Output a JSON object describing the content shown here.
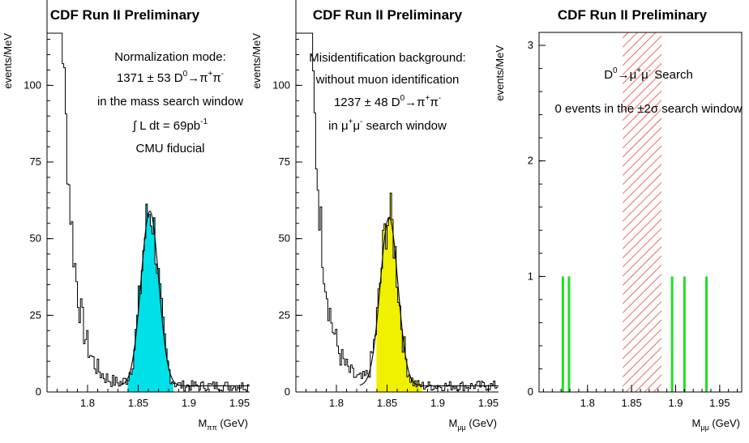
{
  "chart_data": [
    {
      "type": "histogram",
      "title": "CDF Run II Preliminary",
      "xlabel": "M",
      "xlabel_sub": "ππ",
      "xlabel_unit": "(GeV)",
      "ylabel": "events/MeV",
      "xlim": [
        1.76,
        1.96
      ],
      "ylim": [
        0,
        117
      ],
      "xticks": [
        1.8,
        1.85,
        1.9,
        1.95
      ],
      "xtick_labels": [
        "1.8",
        "1.85",
        "1.9",
        "1.95"
      ],
      "yticks": [
        0,
        25,
        50,
        75,
        100
      ],
      "ytick_labels": [
        "0",
        "25",
        "50",
        "75",
        "100"
      ],
      "fill_color": "#00e0e8",
      "fill_range": [
        1.84,
        1.885
      ],
      "fit": {
        "shape": "gaussian",
        "mean": 1.8615,
        "sigma": 0.0087,
        "amplitude": 57,
        "baseline": 2
      },
      "background": {
        "shape": "exponential",
        "x0": 1.775,
        "amplitude": 118,
        "decay": 0.0115
      },
      "annotation_lines": [
        {
          "text": "Normalization mode:"
        },
        {
          "text": "1371 ± 53  D",
          "sup": "0",
          "tail": "→π",
          "tail_sup": "+",
          "tail2": "π",
          "tail2_sup": "-"
        },
        {
          "text": "in the mass search window"
        },
        {
          "text": "∫ L dt = 69pb",
          "sup": "-1"
        },
        {
          "text": "CMU fiducial"
        }
      ]
    },
    {
      "type": "histogram",
      "title": "CDF Run II Preliminary",
      "xlabel": "M",
      "xlabel_sub": "μμ",
      "xlabel_unit": "(GeV)",
      "ylabel": "events/MeV",
      "xlim": [
        1.76,
        1.96
      ],
      "ylim": [
        0,
        117
      ],
      "xticks": [
        1.8,
        1.85,
        1.9,
        1.95
      ],
      "xtick_labels": [
        "1.8",
        "1.85",
        "1.9",
        "1.95"
      ],
      "yticks": [
        0,
        25,
        50,
        75,
        100
      ],
      "ytick_labels": [
        "0",
        "25",
        "50",
        "75",
        "100"
      ],
      "fill_color": "#f0f000",
      "fill_range": [
        1.84,
        1.885
      ],
      "fit": {
        "shape": "gaussian",
        "mean": 1.852,
        "sigma": 0.0087,
        "amplitude": 55,
        "baseline": 2
      },
      "background": {
        "shape": "exponential",
        "x0": 1.775,
        "amplitude": 118,
        "decay": 0.0118
      },
      "annotation_lines": [
        {
          "text": "Misidentification background:"
        },
        {
          "text": "without muon identification"
        },
        {
          "text": "1237 ± 48 D",
          "sup": "0",
          "tail": "→π",
          "tail_sup": "+",
          "tail2": "π",
          "tail2_sup": "-"
        },
        {
          "text": "in μ",
          "sup": "+",
          "tail": "μ",
          "tail_sup": "-",
          "tail2": " search window",
          "tail2_sup": ""
        }
      ]
    },
    {
      "type": "histogram",
      "title": "CDF Run II Preliminary",
      "xlabel": "M",
      "xlabel_sub": "μμ",
      "xlabel_unit": "(GeV)",
      "ylabel": "events/MeV",
      "xlim": [
        1.745,
        1.975
      ],
      "ylim": [
        0,
        3
      ],
      "xticks": [
        1.8,
        1.85,
        1.9,
        1.95
      ],
      "xtick_labels": [
        "1.8",
        "1.85",
        "1.9",
        "1.95"
      ],
      "yticks": [
        0,
        1,
        2,
        3
      ],
      "ytick_labels": [
        "0",
        "1",
        "2",
        "3"
      ],
      "events": [
        1.772,
        1.779,
        1.896,
        1.91,
        1.935
      ],
      "event_color": "#22dd22",
      "search_window": [
        1.84,
        1.884
      ],
      "window_color": "#e8282c",
      "annotation_lines": [
        {
          "text": "D",
          "sup": "0",
          "tail": "→μ",
          "tail_sup": "+",
          "tail2": "μ",
          "tail2_sup": "-",
          "tail3": " Search"
        },
        {
          "text": "0 events in the ±2σ search window"
        }
      ]
    }
  ]
}
